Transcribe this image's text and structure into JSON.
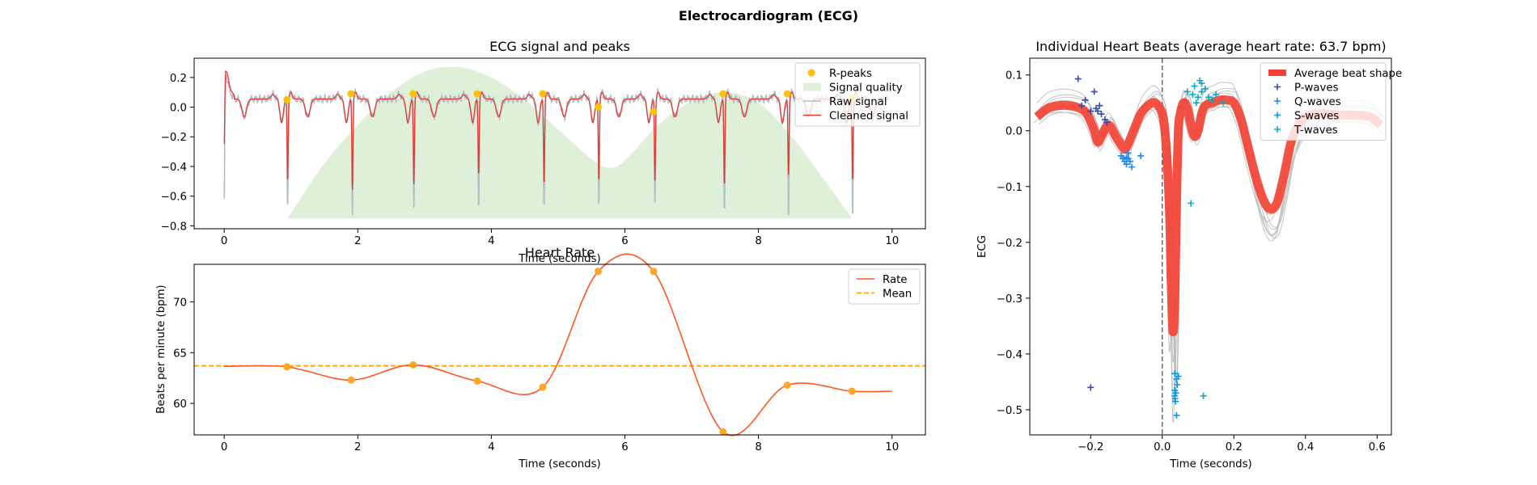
{
  "figure": {
    "title": "Electrocardiogram (ECG)"
  },
  "chart_data": [
    {
      "id": "ecg",
      "type": "line",
      "title": "ECG signal and peaks",
      "xlabel": "Time (seconds)",
      "ylabel": "",
      "xlim": [
        -0.45,
        10.5
      ],
      "ylim": [
        -0.82,
        0.33
      ],
      "xticks": [
        0,
        2,
        4,
        6,
        8,
        10
      ],
      "yticks": [
        -0.8,
        -0.6,
        -0.4,
        -0.2,
        0.0,
        0.2
      ],
      "legend_position": "top-right",
      "legend": [
        "R-peaks",
        "Signal quality",
        "Raw signal",
        "Cleaned signal"
      ],
      "r_peaks": {
        "x": [
          0.94,
          1.9,
          2.83,
          3.79,
          4.77,
          5.6,
          6.43,
          7.47,
          8.43,
          9.4
        ],
        "y": [
          0.05,
          0.09,
          0.09,
          0.09,
          0.09,
          0.0,
          -0.03,
          0.09,
          0.09,
          0.06
        ]
      },
      "signal_quality": {
        "x": [
          0.95,
          1.5,
          2.0,
          2.5,
          3.0,
          3.5,
          4.0,
          4.5,
          5.0,
          5.5,
          5.75,
          6.0,
          6.5,
          7.0,
          7.5,
          8.0,
          8.5,
          9.0,
          9.4
        ],
        "y": [
          -0.75,
          -0.38,
          -0.12,
          0.1,
          0.24,
          0.27,
          0.2,
          0.05,
          -0.15,
          -0.35,
          -0.41,
          -0.36,
          -0.12,
          0.04,
          0.1,
          0.03,
          -0.2,
          -0.5,
          -0.75
        ]
      },
      "signal": {
        "x_start": 0.0,
        "x_end": 9.95,
        "r_peak_times": [
          0.0,
          0.95,
          1.92,
          2.84,
          3.81,
          4.79,
          5.61,
          6.45,
          7.49,
          8.45,
          9.41
        ],
        "r_peak_depths_raw": [
          -0.62,
          -0.66,
          -0.71,
          -0.67,
          -0.68,
          -0.68,
          -0.66,
          -0.65,
          -0.7,
          -0.75,
          -0.75
        ],
        "r_peak_depths_clean": [
          -0.25,
          -0.5,
          -0.56,
          -0.52,
          -0.46,
          -0.52,
          -0.5,
          -0.51,
          -0.53,
          -0.47,
          -0.5
        ]
      },
      "series_colors": {
        "r_peaks": "#FFC107",
        "signal_quality": "#DFF0D8",
        "raw": "#B0BEC5",
        "cleaned": "#E53935"
      }
    },
    {
      "id": "rate",
      "type": "line",
      "title": "Heart Rate",
      "xlabel": "Time (seconds)",
      "ylabel": "Beats per minute (bpm)",
      "xlim": [
        -0.45,
        10.5
      ],
      "ylim": [
        56.9,
        73.7
      ],
      "xticks": [
        0,
        2,
        4,
        6,
        8,
        10
      ],
      "yticks": [
        60,
        65,
        70
      ],
      "legend_position": "top-right",
      "legend": [
        "Rate",
        "Mean"
      ],
      "mean": 63.7,
      "points": {
        "x": [
          0.94,
          1.9,
          2.83,
          3.79,
          4.77,
          5.6,
          6.43,
          7.47,
          8.43,
          9.4
        ],
        "y": [
          63.6,
          62.3,
          63.8,
          62.2,
          61.6,
          73.0,
          73.0,
          57.2,
          61.8,
          61.2
        ]
      },
      "line_start": {
        "x": 0.0,
        "y": 63.65
      },
      "line_end": {
        "x": 10.0,
        "y": 61.2
      },
      "series_colors": {
        "rate": "#FF5722",
        "mean": "#FF9800"
      }
    },
    {
      "id": "beats",
      "type": "line",
      "title": "Individual Heart Beats (average heart rate: 63.7 bpm)",
      "xlabel": "Time (seconds)",
      "ylabel": "ECG",
      "xlim": [
        -0.37,
        0.64
      ],
      "ylim": [
        -0.545,
        0.13
      ],
      "xticks": [
        -0.2,
        0.0,
        0.2,
        0.4,
        0.6
      ],
      "yticks": [
        -0.5,
        -0.4,
        -0.3,
        -0.2,
        -0.1,
        0.0,
        0.1
      ],
      "legend_position": "top-right",
      "legend": [
        "Average beat shape",
        "P-waves",
        "Q-waves",
        "S-waves",
        "T-waves"
      ],
      "average_beat": {
        "x": [
          -0.35,
          -0.32,
          -0.29,
          -0.26,
          -0.23,
          -0.21,
          -0.19,
          -0.18,
          -0.17,
          -0.15,
          -0.13,
          -0.11,
          -0.1,
          -0.08,
          -0.06,
          -0.04,
          -0.02,
          0.0,
          0.01,
          0.02,
          0.025,
          0.03,
          0.035,
          0.04,
          0.045,
          0.05,
          0.06,
          0.07,
          0.08,
          0.09,
          0.1,
          0.11,
          0.12,
          0.14,
          0.16,
          0.18,
          0.2,
          0.22,
          0.24,
          0.26,
          0.28,
          0.3,
          0.32,
          0.34,
          0.36,
          0.38,
          0.4,
          0.43,
          0.46,
          0.5,
          0.54,
          0.58,
          0.61
        ],
        "y": [
          0.025,
          0.04,
          0.045,
          0.045,
          0.04,
          0.03,
          0.0,
          -0.02,
          -0.01,
          0.01,
          -0.01,
          -0.03,
          -0.03,
          0.0,
          0.03,
          0.045,
          0.05,
          0.03,
          -0.02,
          -0.14,
          -0.27,
          -0.36,
          -0.3,
          -0.12,
          0.0,
          0.03,
          0.05,
          0.04,
          0.01,
          -0.01,
          0.0,
          0.03,
          0.045,
          0.05,
          0.055,
          0.055,
          0.05,
          0.02,
          -0.03,
          -0.08,
          -0.12,
          -0.14,
          -0.13,
          -0.08,
          -0.02,
          0.01,
          0.025,
          0.03,
          0.03,
          0.028,
          0.028,
          0.025,
          0.01
        ]
      },
      "p_waves": {
        "x": [
          -0.235,
          -0.225,
          -0.215,
          -0.2,
          -0.19,
          -0.185,
          -0.18,
          -0.175,
          -0.17,
          -0.16,
          -0.155,
          -0.2
        ],
        "y": [
          0.093,
          0.045,
          0.055,
          0.035,
          0.07,
          0.04,
          0.035,
          0.045,
          0.03,
          0.02,
          0.015,
          -0.46
        ]
      },
      "q_waves": {
        "x": [
          -0.115,
          -0.11,
          -0.105,
          -0.1,
          -0.1,
          -0.095,
          -0.095,
          -0.09,
          -0.085,
          -0.06
        ],
        "y": [
          -0.045,
          -0.05,
          -0.055,
          -0.048,
          -0.06,
          -0.05,
          -0.04,
          -0.055,
          -0.065,
          -0.045
        ]
      },
      "s_waves": {
        "x": [
          0.035,
          0.035,
          0.035,
          0.036,
          0.037,
          0.038,
          0.04,
          0.04,
          0.042,
          0.045
        ],
        "y": [
          -0.435,
          -0.465,
          -0.475,
          -0.48,
          -0.485,
          -0.47,
          -0.445,
          -0.51,
          -0.455,
          -0.44
        ]
      },
      "t_waves": {
        "x": [
          0.07,
          0.085,
          0.09,
          0.095,
          0.1,
          0.105,
          0.11,
          0.12,
          0.13,
          0.14,
          0.15,
          0.17,
          0.11,
          0.08,
          0.115
        ],
        "y": [
          0.07,
          0.065,
          0.08,
          0.05,
          0.06,
          0.09,
          0.07,
          0.075,
          0.06,
          0.055,
          0.065,
          0.05,
          0.085,
          -0.13,
          -0.475
        ]
      },
      "series_colors": {
        "average": "#F44336",
        "beats": "#BDBDBD",
        "p": "#3949AB",
        "q": "#1E88E5",
        "s": "#039BE5",
        "t": "#00ACC1"
      }
    }
  ]
}
